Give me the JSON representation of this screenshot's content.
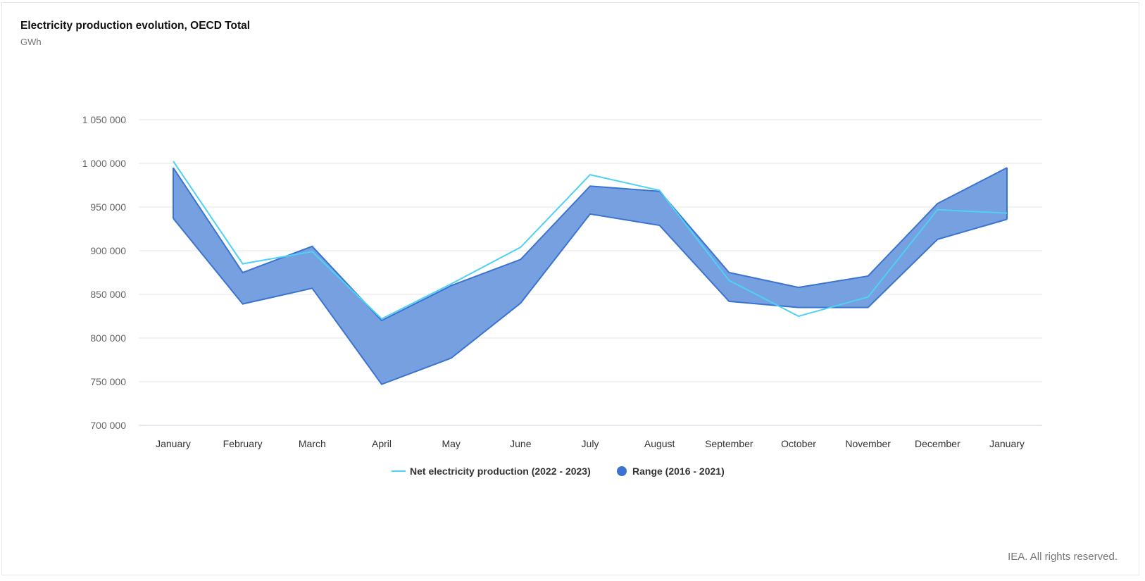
{
  "chart_data": {
    "type": "area",
    "title": "Electricity production evolution, OECD Total",
    "subtitle": "GWh",
    "credit": "IEA. All rights reserved.",
    "categories": [
      "January",
      "February",
      "March",
      "April",
      "May",
      "June",
      "July",
      "August",
      "September",
      "October",
      "November",
      "December",
      "January"
    ],
    "ylim": [
      700000,
      1050000
    ],
    "yticks": [
      700000,
      750000,
      800000,
      850000,
      900000,
      950000,
      1000000,
      1050000
    ],
    "ytick_labels": [
      "700 000",
      "750 000",
      "800 000",
      "850 000",
      "900 000",
      "950 000",
      "1 000 000",
      "1 050 000"
    ],
    "grid": true,
    "legend_position": "bottom",
    "series": [
      {
        "name": "Net electricity production (2022 - 2023)",
        "type": "line",
        "color": "#4fd0f5",
        "values": [
          1002500,
          885000,
          899000,
          822000,
          862000,
          904000,
          987000,
          969000,
          866000,
          825000,
          847000,
          947000,
          943000
        ]
      },
      {
        "name": "Range (2016 - 2021)",
        "type": "range",
        "color": "#3a74d0",
        "fill": "#6f9bdd",
        "upper": [
          995000,
          875000,
          905000,
          820000,
          860000,
          890000,
          974000,
          968000,
          875000,
          858000,
          871000,
          954000,
          995000
        ],
        "lower": [
          937000,
          839000,
          857000,
          747000,
          777000,
          840000,
          942000,
          929000,
          842000,
          835000,
          835000,
          913000,
          936000
        ]
      }
    ]
  }
}
